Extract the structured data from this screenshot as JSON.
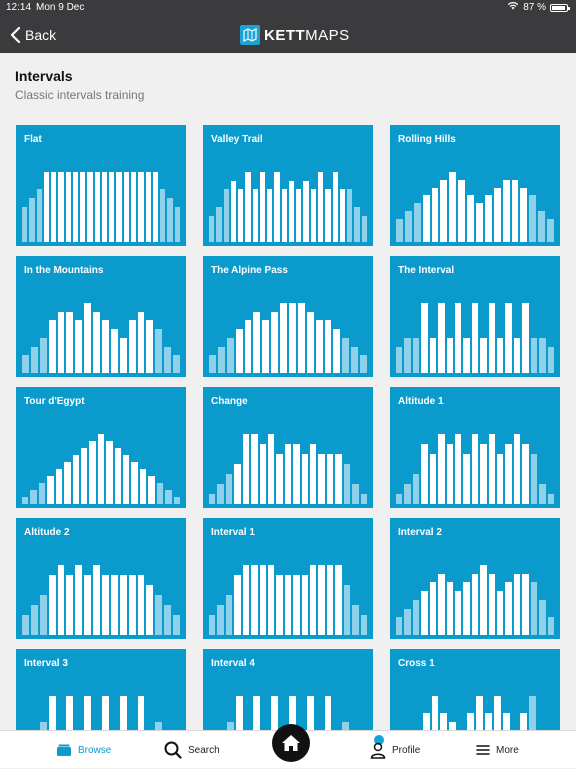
{
  "status": {
    "time": "12:14",
    "date": "Mon 9 Dec",
    "battery": "87 %"
  },
  "nav": {
    "back_label": "Back",
    "brand_kett": "KETT",
    "brand_maps": "MAPS"
  },
  "header": {
    "title": "Intervals",
    "subtitle": "Classic intervals training"
  },
  "workouts": [
    {
      "name": "Flat",
      "profile": [
        4,
        5,
        6,
        8,
        8,
        8,
        8,
        8,
        8,
        8,
        8,
        8,
        8,
        8,
        8,
        8,
        8,
        8,
        8,
        6,
        5,
        4
      ]
    },
    {
      "name": "Valley Trail",
      "profile": [
        3,
        4,
        6,
        7,
        6,
        8,
        6,
        8,
        6,
        8,
        6,
        7,
        6,
        7,
        6,
        8,
        6,
        8,
        6,
        6,
        4,
        3
      ]
    },
    {
      "name": "Rolling Hills",
      "profile": [
        3,
        4,
        5,
        6,
        7,
        8,
        9,
        8,
        6,
        5,
        6,
        7,
        8,
        8,
        7,
        6,
        4,
        3
      ]
    },
    {
      "name": "In the Mountains",
      "profile": [
        2,
        3,
        4,
        6,
        7,
        7,
        6,
        8,
        7,
        6,
        5,
        4,
        6,
        7,
        6,
        5,
        3,
        2
      ]
    },
    {
      "name": "The Alpine Pass",
      "profile": [
        2,
        3,
        4,
        5,
        6,
        7,
        6,
        7,
        8,
        8,
        8,
        7,
        6,
        6,
        5,
        4,
        3,
        2
      ]
    },
    {
      "name": "The Interval",
      "profile": [
        3,
        4,
        4,
        8,
        4,
        8,
        4,
        8,
        4,
        8,
        4,
        8,
        4,
        8,
        4,
        8,
        4,
        4,
        3
      ]
    },
    {
      "name": "Tour d'Egypt",
      "profile": [
        1,
        2,
        3,
        4,
        5,
        6,
        7,
        8,
        9,
        10,
        9,
        8,
        7,
        6,
        5,
        4,
        3,
        2,
        1
      ]
    },
    {
      "name": "Change",
      "profile": [
        1,
        2,
        3,
        4,
        7,
        7,
        6,
        7,
        5,
        6,
        6,
        5,
        6,
        5,
        5,
        5,
        4,
        2,
        1
      ]
    },
    {
      "name": "Altitude 1",
      "profile": [
        1,
        2,
        3,
        6,
        5,
        7,
        6,
        7,
        5,
        7,
        6,
        7,
        5,
        6,
        7,
        6,
        5,
        2,
        1
      ]
    },
    {
      "name": "Altitude 2",
      "profile": [
        2,
        3,
        4,
        6,
        7,
        6,
        7,
        6,
        7,
        6,
        6,
        6,
        6,
        6,
        5,
        4,
        3,
        2
      ]
    },
    {
      "name": "Interval 1",
      "profile": [
        2,
        3,
        4,
        6,
        7,
        7,
        7,
        7,
        6,
        6,
        6,
        6,
        7,
        7,
        7,
        7,
        5,
        3,
        2
      ]
    },
    {
      "name": "Interval 2",
      "profile": [
        2,
        3,
        4,
        5,
        6,
        7,
        6,
        5,
        6,
        7,
        8,
        7,
        5,
        6,
        7,
        7,
        6,
        4,
        2
      ]
    },
    {
      "name": "Interval 3",
      "profile": [
        2,
        3,
        5,
        8,
        3,
        8,
        3,
        8,
        3,
        8,
        3,
        8,
        3,
        8,
        3,
        5,
        3,
        2
      ]
    },
    {
      "name": "Interval 4",
      "profile": [
        2,
        3,
        5,
        8,
        3,
        8,
        3,
        8,
        3,
        8,
        3,
        8,
        3,
        8,
        3,
        5,
        3,
        2
      ]
    },
    {
      "name": "Cross 1",
      "profile": [
        2,
        3,
        4,
        6,
        8,
        6,
        5,
        4,
        6,
        8,
        6,
        8,
        6,
        4,
        6,
        8,
        4,
        2
      ]
    }
  ],
  "tabbar": {
    "browse": "Browse",
    "search": "Search",
    "profile": "Profile",
    "more": "More"
  },
  "colors": {
    "brand": "#0a9bcc",
    "nav_bg": "#3b3b3d",
    "bar_light": "#8fd1ea"
  }
}
